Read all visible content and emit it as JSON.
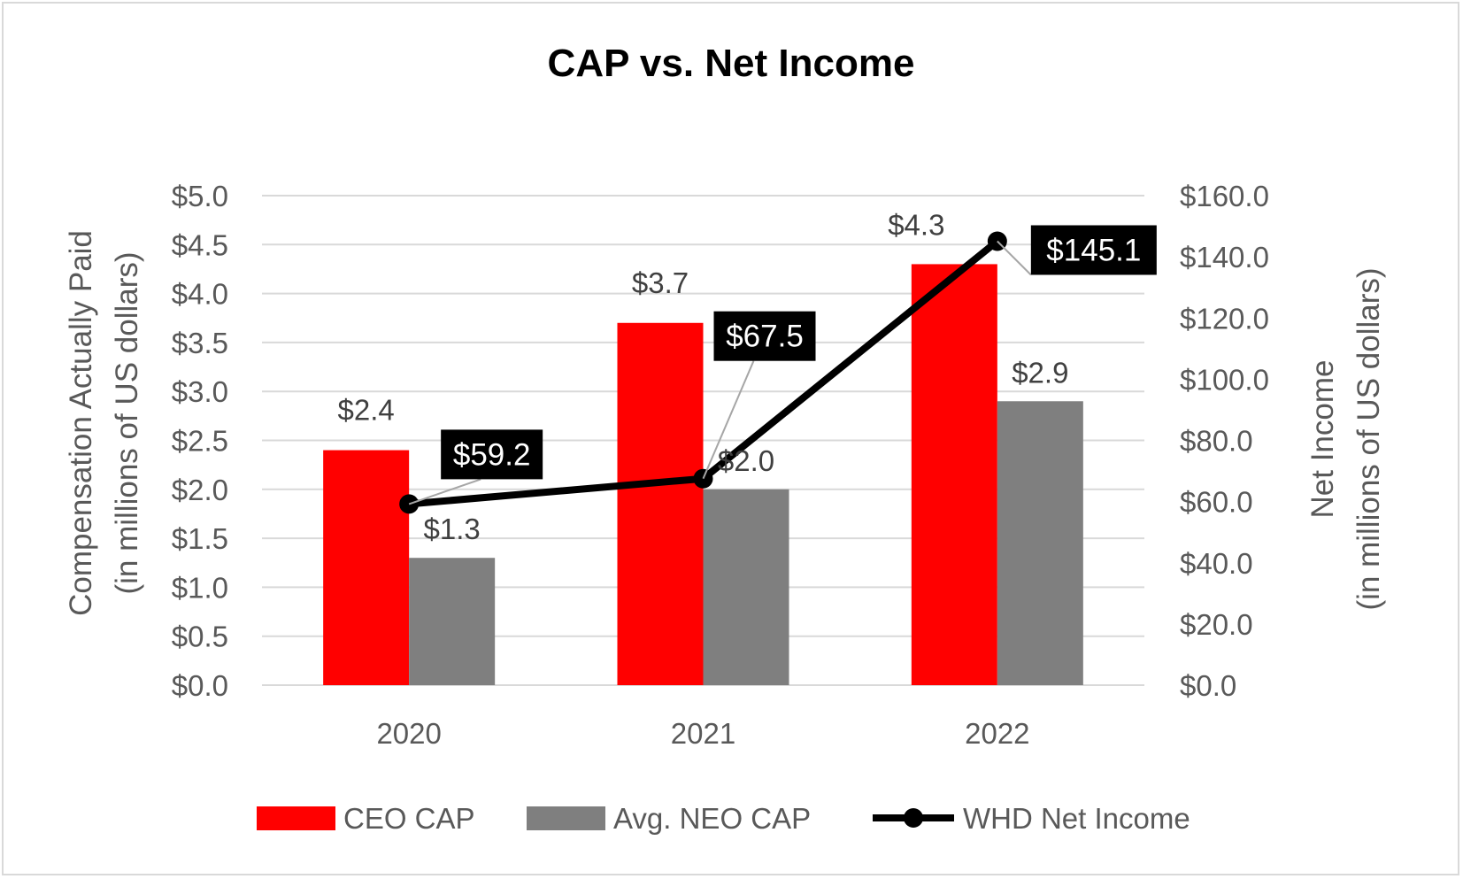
{
  "chart_data": {
    "type": "bar",
    "title": "CAP vs. Net Income",
    "categories": [
      "2020",
      "2021",
      "2022"
    ],
    "series": [
      {
        "name": "CEO CAP",
        "kind": "bar",
        "axis": "left",
        "color": "#ff0000",
        "values": [
          2.4,
          3.7,
          4.3
        ],
        "labels": [
          "$2.4",
          "$3.7",
          "$4.3"
        ]
      },
      {
        "name": "Avg. NEO CAP",
        "kind": "bar",
        "axis": "left",
        "color": "#7f7f7f",
        "values": [
          1.3,
          2.0,
          2.9
        ],
        "labels": [
          "$1.3",
          "$2.0",
          "$2.9"
        ]
      },
      {
        "name": "WHD Net Income",
        "kind": "line",
        "axis": "right",
        "color": "#000000",
        "values": [
          59.2,
          67.5,
          145.1
        ],
        "labels": [
          "$59.2",
          "$67.5",
          "$145.1"
        ]
      }
    ],
    "y_left": {
      "label_line1": "Compensation Actually Paid",
      "label_line2": "(in millions of US dollars)",
      "ylim": [
        0,
        5
      ],
      "ticks": [
        "$0.0",
        "$0.5",
        "$1.0",
        "$1.5",
        "$2.0",
        "$2.5",
        "$3.0",
        "$3.5",
        "$4.0",
        "$4.5",
        "$5.0"
      ],
      "tick_values": [
        0,
        0.5,
        1,
        1.5,
        2,
        2.5,
        3,
        3.5,
        4,
        4.5,
        5
      ]
    },
    "y_right": {
      "label_line1": "Net Income",
      "label_line2": "(in millions of US dollars)",
      "ylim": [
        0,
        160
      ],
      "ticks": [
        "$0.0",
        "$20.0",
        "$40.0",
        "$60.0",
        "$80.0",
        "$100.0",
        "$120.0",
        "$140.0",
        "$160.0"
      ],
      "tick_values": [
        0,
        20,
        40,
        60,
        80,
        100,
        120,
        140,
        160
      ]
    },
    "grid": true,
    "legend": "bottom",
    "legend_entries": [
      "CEO CAP",
      "Avg. NEO CAP",
      "WHD Net Income"
    ]
  }
}
